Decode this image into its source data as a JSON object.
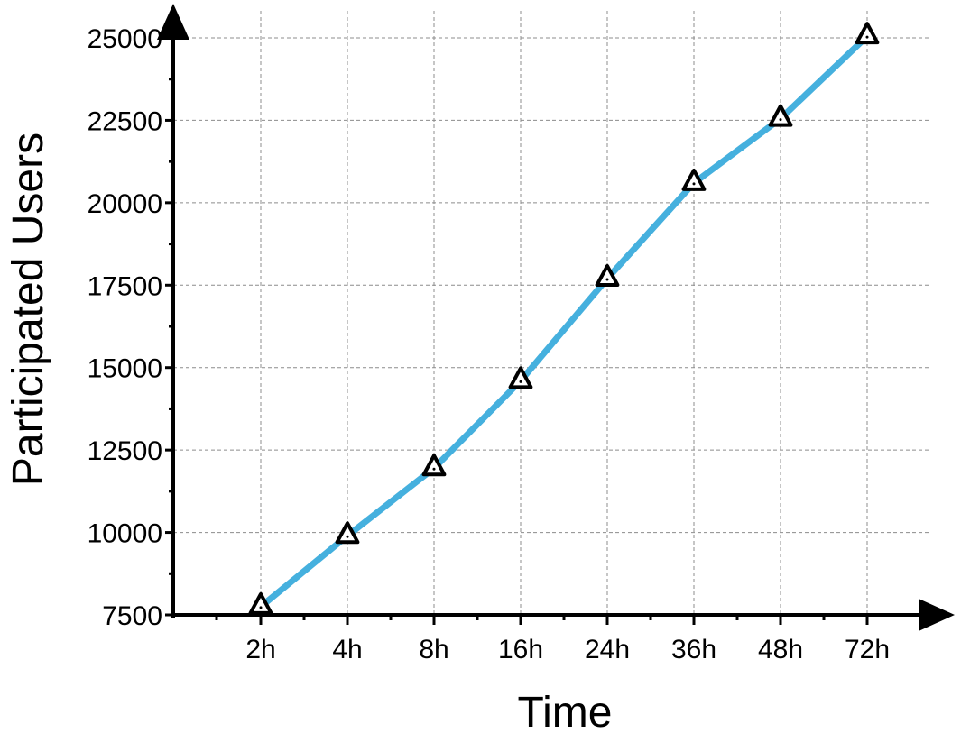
{
  "chart_data": {
    "type": "line",
    "xlabel": "Time",
    "ylabel": "Participated Users",
    "categories": [
      "2h",
      "4h",
      "8h",
      "16h",
      "24h",
      "36h",
      "48h",
      "72h"
    ],
    "series": [
      {
        "values": [
          7750,
          9900,
          11950,
          14600,
          17700,
          20600,
          22550,
          25050
        ],
        "marker": "triangle-open"
      }
    ],
    "ylim": [
      7500,
      25000
    ],
    "yticks": [
      7500,
      10000,
      12500,
      15000,
      17500,
      20000,
      22500,
      25000
    ],
    "ytick_labels": [
      "7500",
      "10000",
      "12500",
      "15000",
      "17500",
      "20000",
      "22500",
      "25000"
    ],
    "grid": true,
    "grid_style": "dashed",
    "line_color": "#45b0de",
    "marker_color": "#000000",
    "axis_color": "#000000",
    "grid_color": "#8c8c8c"
  }
}
